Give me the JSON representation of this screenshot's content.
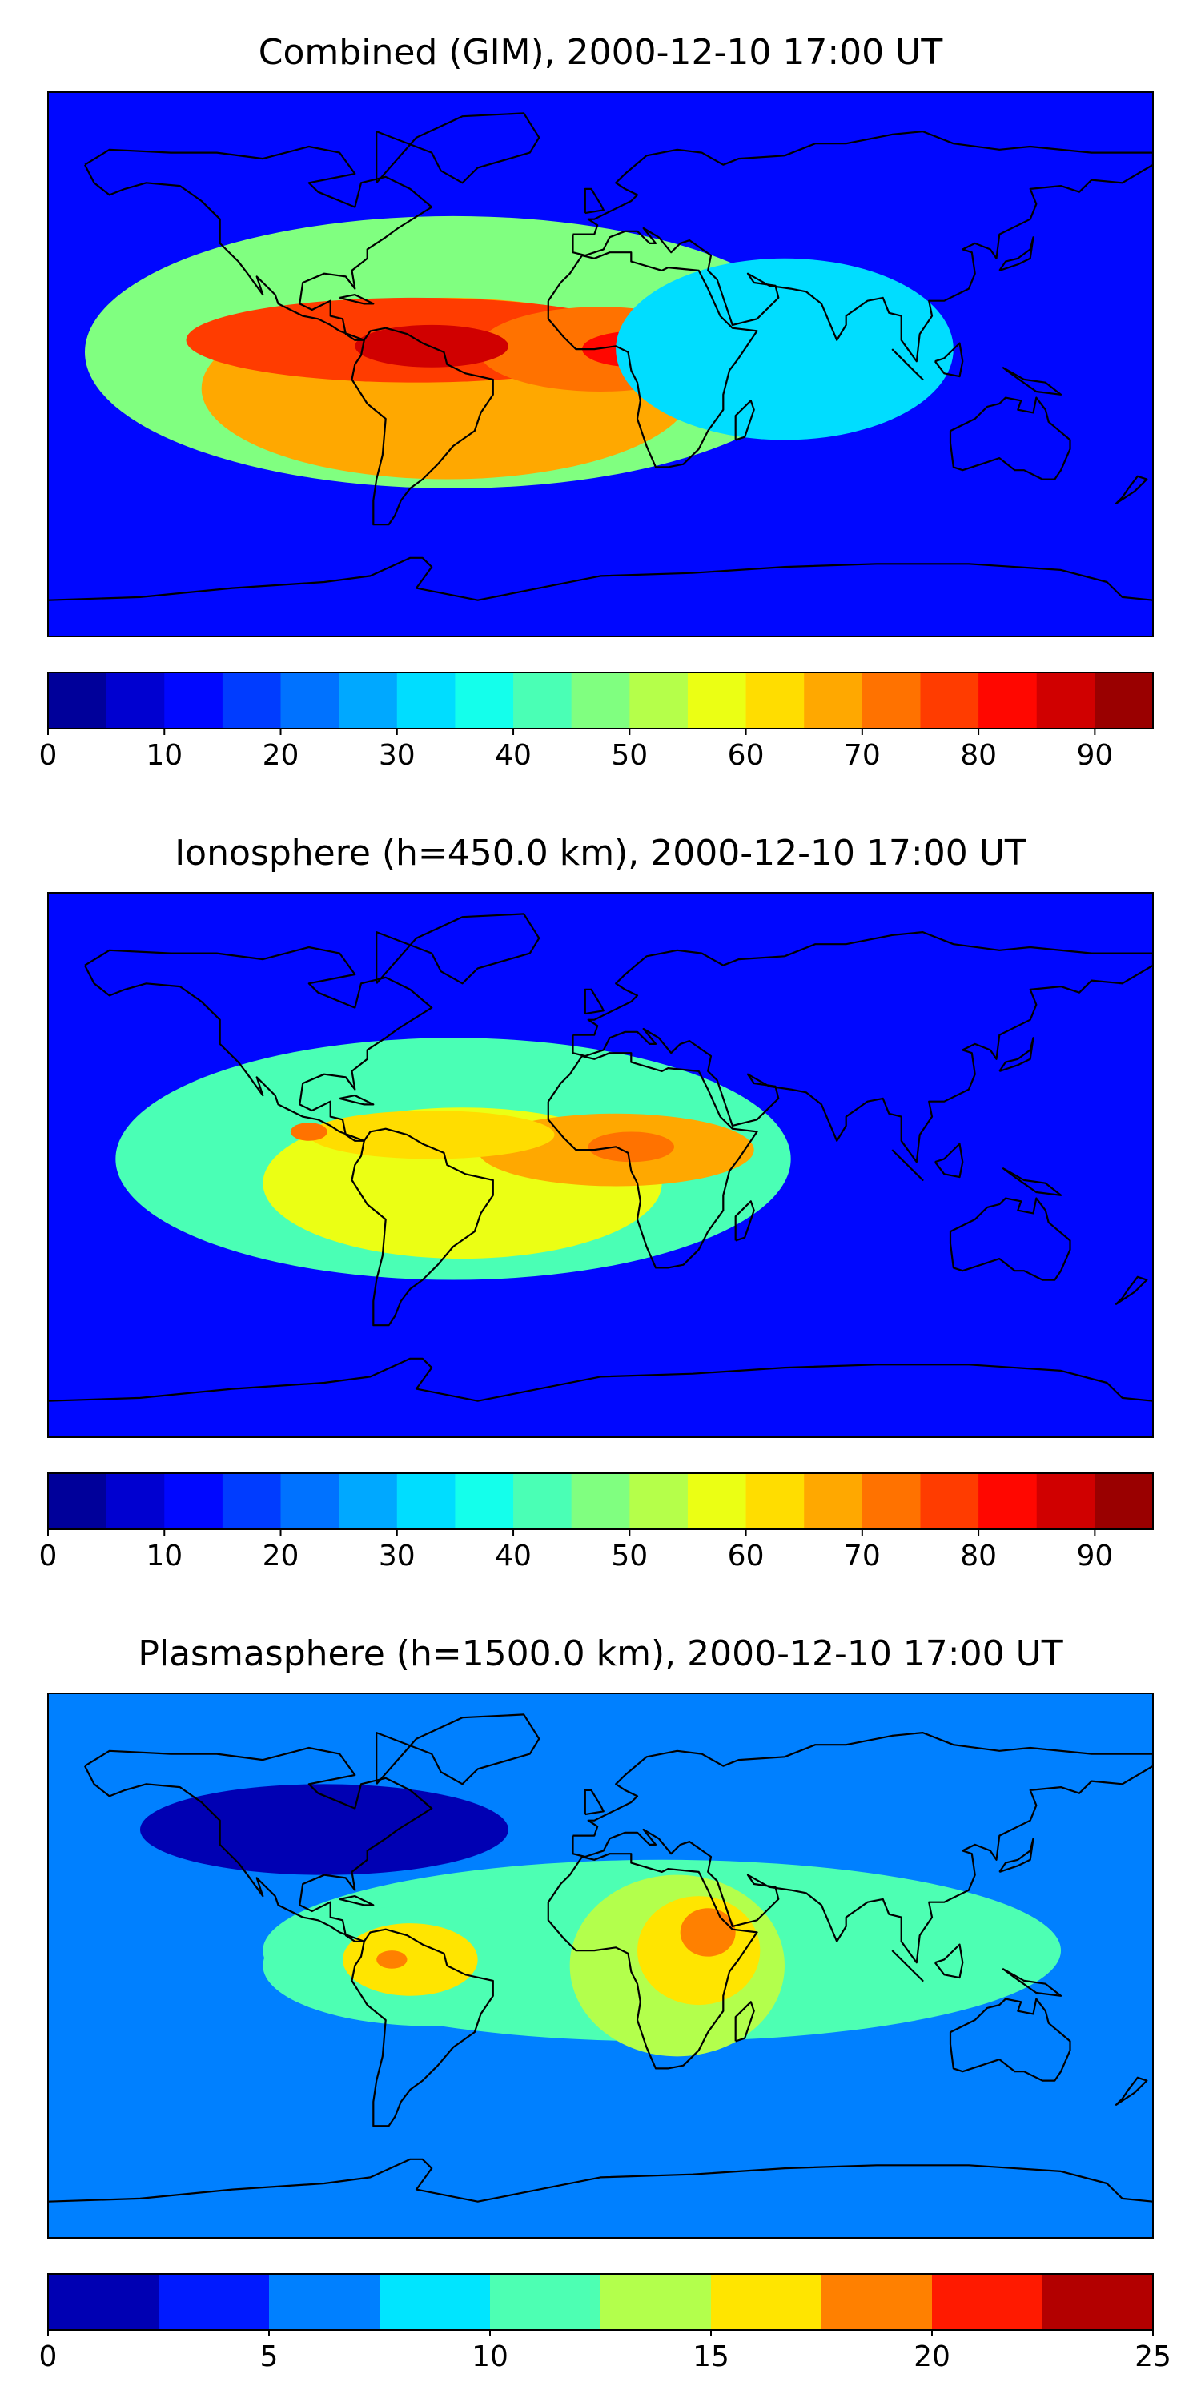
{
  "panels": [
    {
      "title": "Combined (GIM), 2000-12-10 17:00 UT",
      "colorbar": {
        "boundaries": [
          0,
          5,
          10,
          15,
          20,
          25,
          30,
          35,
          40,
          45,
          50,
          55,
          60,
          65,
          70,
          75,
          80,
          85,
          90,
          95
        ],
        "ticks": [
          "0",
          "10",
          "20",
          "30",
          "40",
          "50",
          "60",
          "70",
          "80",
          "90"
        ],
        "tick_values": [
          0,
          10,
          20,
          30,
          40,
          50,
          60,
          70,
          80,
          90
        ]
      },
      "blobs": [
        {
          "lon": -48,
          "lat": 4,
          "rx": 120,
          "ry": 45,
          "value": 48
        },
        {
          "lon": -50,
          "lat": -8,
          "rx": 80,
          "ry": 30,
          "value": 65
        },
        {
          "lon": -60,
          "lat": 8,
          "rx": 75,
          "ry": 14,
          "value": 75
        },
        {
          "lon": 0,
          "lat": 5,
          "rx": 40,
          "ry": 14,
          "value": 72
        },
        {
          "lon": -55,
          "lat": 6,
          "rx": 25,
          "ry": 7,
          "value": 85
        },
        {
          "lon": 12,
          "lat": 5,
          "rx": 18,
          "ry": 6,
          "value": 82
        },
        {
          "lon": 60,
          "lat": 5,
          "rx": 55,
          "ry": 30,
          "value": 30
        }
      ]
    },
    {
      "title": "Ionosphere  (h=450.0 km), 2000-12-10 17:00 UT",
      "colorbar": {
        "boundaries": [
          0,
          5,
          10,
          15,
          20,
          25,
          30,
          35,
          40,
          45,
          50,
          55,
          60,
          65,
          70,
          75,
          80,
          85,
          90,
          95
        ],
        "ticks": [
          "0",
          "10",
          "20",
          "30",
          "40",
          "50",
          "60",
          "70",
          "80",
          "90"
        ],
        "tick_values": [
          0,
          10,
          20,
          30,
          40,
          50,
          60,
          70,
          80,
          90
        ]
      },
      "blobs": [
        {
          "lon": -48,
          "lat": 2,
          "rx": 110,
          "ry": 40,
          "value": 42
        },
        {
          "lon": -45,
          "lat": -6,
          "rx": 65,
          "ry": 25,
          "value": 58
        },
        {
          "lon": 5,
          "lat": 5,
          "rx": 45,
          "ry": 12,
          "value": 65
        },
        {
          "lon": -55,
          "lat": 10,
          "rx": 40,
          "ry": 8,
          "value": 62
        },
        {
          "lon": 10,
          "lat": 6,
          "rx": 14,
          "ry": 5,
          "value": 72
        },
        {
          "lon": -95,
          "lat": 11,
          "rx": 6,
          "ry": 3,
          "value": 72
        }
      ]
    },
    {
      "title": "Plasmasphere (h=1500.0 km), 2000-12-10 17:00 UT",
      "colorbar": {
        "boundaries": [
          0,
          2.5,
          5,
          7.5,
          10,
          12.5,
          15,
          17.5,
          20,
          22.5,
          25
        ],
        "ticks": [
          "0",
          "5",
          "10",
          "15",
          "20",
          "25"
        ],
        "tick_values": [
          0,
          5,
          10,
          15,
          20,
          25
        ]
      },
      "blobs": [
        {
          "lon": 20,
          "lat": 5,
          "rx": 130,
          "ry": 30,
          "value": 11
        },
        {
          "lon": -55,
          "lat": 0,
          "rx": 55,
          "ry": 20,
          "value": 12
        },
        {
          "lon": 25,
          "lat": 0,
          "rx": 35,
          "ry": 30,
          "value": 13.5
        },
        {
          "lon": -62,
          "lat": 2,
          "rx": 22,
          "ry": 12,
          "value": 16
        },
        {
          "lon": 32,
          "lat": 5,
          "rx": 20,
          "ry": 18,
          "value": 16
        },
        {
          "lon": 35,
          "lat": 11,
          "rx": 9,
          "ry": 8,
          "value": 18
        },
        {
          "lon": -68,
          "lat": 2,
          "rx": 5,
          "ry": 3,
          "value": 19
        },
        {
          "lon": -90,
          "lat": 45,
          "rx": 60,
          "ry": 15,
          "value": 1.5
        }
      ]
    }
  ]
}
